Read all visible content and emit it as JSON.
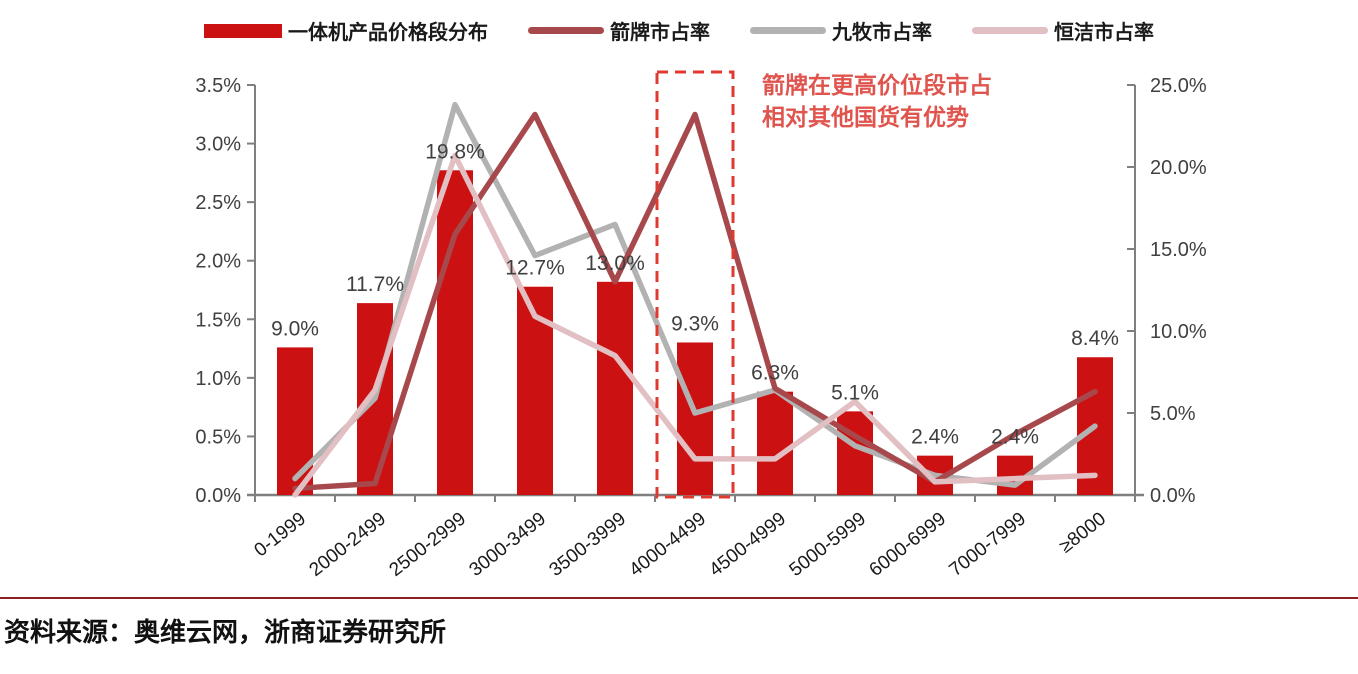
{
  "legend": {
    "items": [
      {
        "label": "一体机产品价格段分布",
        "type": "bar",
        "color": "#cc1112"
      },
      {
        "label": "箭牌市占率",
        "type": "line",
        "color": "#a7494c"
      },
      {
        "label": "九牧市占率",
        "type": "line",
        "color": "#b3b2b2"
      },
      {
        "label": "恒洁市占率",
        "type": "line",
        "color": "#e2bfc2"
      }
    ]
  },
  "annotation": {
    "line1": "箭牌在更高价位段市占",
    "line2": "相对其他国货有优势",
    "color": "#e0544e"
  },
  "source": {
    "text": "资料来源：奥维云网，浙商证券研究所"
  },
  "colors": {
    "bar_red": "#cc1112",
    "arrow_line_red": "#a7494c",
    "jomoo_line_gray": "#b3b2b2",
    "hengjie_line_pink": "#e2bfc2",
    "highlight_box_red": "#e03a30",
    "annotation_red": "#e0544e",
    "axis_gray": "#7f7f7f",
    "label_dark": "#404040",
    "footer_rule_maroon": "#8d1f1f"
  },
  "chart_data": {
    "type": "bar",
    "subtype": "combo bar + 3 lines, dual y-axis, values plotted on right axis",
    "categories": [
      "0-1999",
      "2000-2499",
      "2500-2999",
      "3000-3499",
      "3500-3999",
      "4000-4499",
      "4500-4999",
      "5000-5999",
      "6000-6999",
      "7000-7999",
      "≥8000"
    ],
    "bar_series": {
      "name": "一体机产品价格段分布",
      "axis": "right",
      "values": [
        9.0,
        11.7,
        19.8,
        12.7,
        13.0,
        9.3,
        6.3,
        5.1,
        2.4,
        2.4,
        8.4
      ],
      "labels": [
        "9.0%",
        "11.7%",
        "19.8%",
        "12.7%",
        "13.0%",
        "9.3%",
        "6.3%",
        "5.1%",
        "2.4%",
        "2.4%",
        "8.4%"
      ]
    },
    "line_series": [
      {
        "name": "箭牌市占率",
        "axis": "right",
        "color": "#a7494c",
        "values": [
          0.4,
          0.7,
          15.9,
          23.2,
          13.0,
          23.2,
          6.5,
          3.6,
          0.8,
          3.7,
          6.3
        ]
      },
      {
        "name": "九牧市占率",
        "axis": "right",
        "color": "#b3b2b2",
        "values": [
          1.0,
          5.9,
          23.8,
          14.6,
          16.5,
          5.0,
          6.4,
          3.0,
          1.2,
          0.6,
          4.2
        ]
      },
      {
        "name": "恒洁市占率",
        "axis": "right",
        "color": "#e2bfc2",
        "values": [
          0.0,
          6.4,
          20.7,
          10.9,
          8.5,
          2.2,
          2.2,
          5.7,
          0.8,
          1.0,
          1.2
        ]
      }
    ],
    "left_axis": {
      "min": 0,
      "max": 3.5,
      "ticks": [
        "0.0%",
        "0.5%",
        "1.0%",
        "1.5%",
        "2.0%",
        "2.5%",
        "3.0%",
        "3.5%"
      ]
    },
    "right_axis": {
      "min": 0,
      "max": 25,
      "ticks": [
        "0.0%",
        "5.0%",
        "10.0%",
        "15.0%",
        "20.0%",
        "25.0%"
      ]
    },
    "grid": false,
    "legend_position": "top",
    "highlight_box_category": "4000-4499"
  }
}
